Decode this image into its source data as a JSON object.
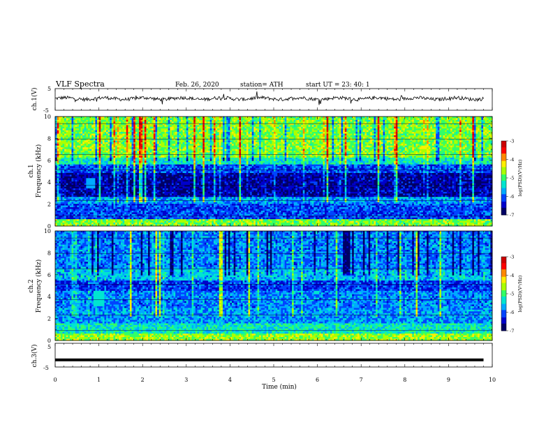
{
  "header": {
    "title": "VLF  Spectra",
    "date": "Feb. 26, 2020",
    "station": "station= ATH",
    "start": "start  UT  =   23: 40: 1"
  },
  "colors": {
    "scale": [
      "#000066",
      "#0000cc",
      "#0044ff",
      "#00aaff",
      "#00e5d0",
      "#33ff66",
      "#aaff00",
      "#ffee00",
      "#ff8800",
      "#ff0000",
      "#cc0000"
    ],
    "trace": "#000000"
  },
  "chart_data": [
    {
      "type": "line",
      "ylabel": "ch.1(V)",
      "ylim": [
        -5,
        5
      ],
      "y_ticks": [
        "5",
        "-5"
      ],
      "x_range_min": [
        0,
        9.8
      ],
      "description_level": "noisy trace around 0 V"
    },
    {
      "type": "heatmap",
      "ylabel_channel": "ch.1",
      "ylabel": "Frequency  (kHz)",
      "ylim": [
        0,
        10
      ],
      "y_ticks": [
        "0",
        "2",
        "4",
        "6",
        "8",
        "10"
      ],
      "colorbar_label": "log(PSD)(V²/Hz)",
      "colorbar_ticks": [
        "-3",
        "-4",
        "-5",
        "-6",
        "-7"
      ],
      "colorbar_range": [
        -7,
        -3
      ]
    },
    {
      "type": "heatmap",
      "ylabel_channel": "ch.2",
      "ylabel": "Frequency  (kHz)",
      "ylim": [
        0,
        10
      ],
      "y_ticks": [
        "0",
        "2",
        "4",
        "6",
        "8",
        "10"
      ],
      "colorbar_label": "log(PSD)(V²/Hz)",
      "colorbar_ticks": [
        "-3",
        "-4",
        "-5",
        "-6",
        "-7"
      ],
      "colorbar_range": [
        -7,
        -3
      ]
    },
    {
      "type": "line",
      "ylabel": "ch.3(V)",
      "ylim": [
        -5,
        5
      ],
      "y_ticks": [
        "5",
        "-5"
      ],
      "value_level": -2,
      "x_range_min": [
        0,
        9.8
      ],
      "xlabel": "Time  (min)",
      "x_ticks": [
        "0",
        "1",
        "2",
        "3",
        "4",
        "5",
        "6",
        "7",
        "8",
        "9",
        "10"
      ]
    }
  ]
}
